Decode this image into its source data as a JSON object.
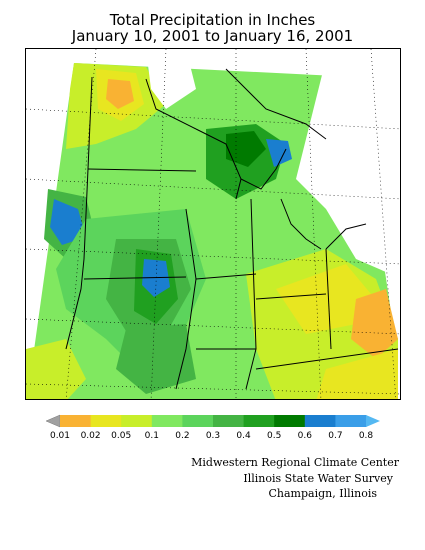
{
  "header": {
    "title_line1": "Total Precipitation in Inches",
    "title_line2": "January 10, 2001  to January 16, 2001"
  },
  "legend": {
    "labels": [
      "0.01",
      "0.02",
      "0.05",
      "0.1",
      "0.2",
      "0.3",
      "0.4",
      "0.5",
      "0.6",
      "0.7",
      "0.8"
    ],
    "colors": [
      "#a0a0a0",
      "#f9b233",
      "#e8e620",
      "#c8ee2a",
      "#80e860",
      "#5cd45c",
      "#44b444",
      "#20a020",
      "#007a00",
      "#1a7ecf",
      "#3a9ee8",
      "#54b8f2"
    ]
  },
  "credits": {
    "line1": "Midwestern Regional Climate Center",
    "line2": "Illinois State Water Survey",
    "line3": "Champaign, Illinois"
  }
}
